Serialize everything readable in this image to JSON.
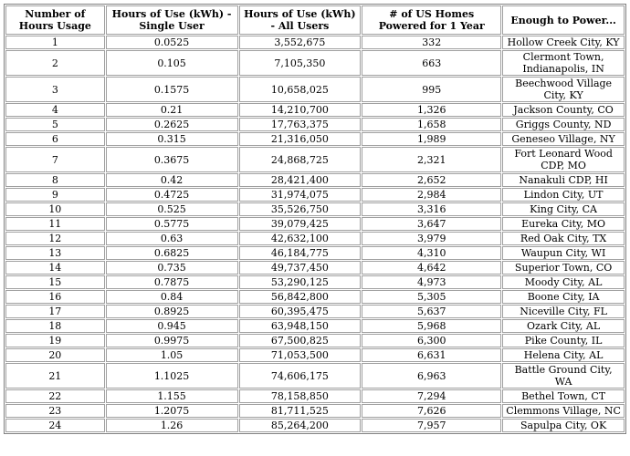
{
  "table": {
    "header": [
      "Number of Hours Usage",
      "Hours of Use (kWh) - Single User",
      "Hours of Use (kWh) - All Users",
      "# of US Homes Powered for 1 Year",
      "Enough to Power..."
    ],
    "rows": [
      [
        "1",
        "0.0525",
        "3,552,675",
        "332",
        "Hollow Creek City, KY"
      ],
      [
        "2",
        "0.105",
        "7,105,350",
        "663",
        "Clermont Town, Indianapolis, IN"
      ],
      [
        "3",
        "0.1575",
        "10,658,025",
        "995",
        "Beechwood Village City, KY"
      ],
      [
        "4",
        "0.21",
        "14,210,700",
        "1,326",
        "Jackson County, CO"
      ],
      [
        "5",
        "0.2625",
        "17,763,375",
        "1,658",
        "Griggs County, ND"
      ],
      [
        "6",
        "0.315",
        "21,316,050",
        "1,989",
        "Geneseo Village, NY"
      ],
      [
        "7",
        "0.3675",
        "24,868,725",
        "2,321",
        "Fort Leonard Wood CDP, MO"
      ],
      [
        "8",
        "0.42",
        "28,421,400",
        "2,652",
        "Nanakuli CDP, HI"
      ],
      [
        "9",
        "0.4725",
        "31,974,075",
        "2,984",
        "Lindon City, UT"
      ],
      [
        "10",
        "0.525",
        "35,526,750",
        "3,316",
        "King City, CA"
      ],
      [
        "11",
        "0.5775",
        "39,079,425",
        "3,647",
        "Eureka City, MO"
      ],
      [
        "12",
        "0.63",
        "42,632,100",
        "3,979",
        "Red Oak City, TX"
      ],
      [
        "13",
        "0.6825",
        "46,184,775",
        "4,310",
        "Waupun City, WI"
      ],
      [
        "14",
        "0.735",
        "49,737,450",
        "4,642",
        "Superior Town, CO"
      ],
      [
        "15",
        "0.7875",
        "53,290,125",
        "4,973",
        "Moody City, AL"
      ],
      [
        "16",
        "0.84",
        "56,842,800",
        "5,305",
        "Boone City, IA"
      ],
      [
        "17",
        "0.8925",
        "60,395,475",
        "5,637",
        "Niceville City, FL"
      ],
      [
        "18",
        "0.945",
        "63,948,150",
        "5,968",
        "Ozark City, AL"
      ],
      [
        "19",
        "0.9975",
        "67,500,825",
        "6,300",
        "Pike County, IL"
      ],
      [
        "20",
        "1.05",
        "71,053,500",
        "6,631",
        "Helena City, AL"
      ],
      [
        "21",
        "1.1025",
        "74,606,175",
        "6,963",
        "Battle Ground City, WA"
      ],
      [
        "22",
        "1.155",
        "78,158,850",
        "7,294",
        "Bethel Town, CT"
      ],
      [
        "23",
        "1.2075",
        "81,711,525",
        "7,626",
        "Clemmons Village, NC"
      ],
      [
        "24",
        "1.26",
        "85,264,200",
        "7,957",
        "Sapulpa City, OK"
      ]
    ]
  }
}
